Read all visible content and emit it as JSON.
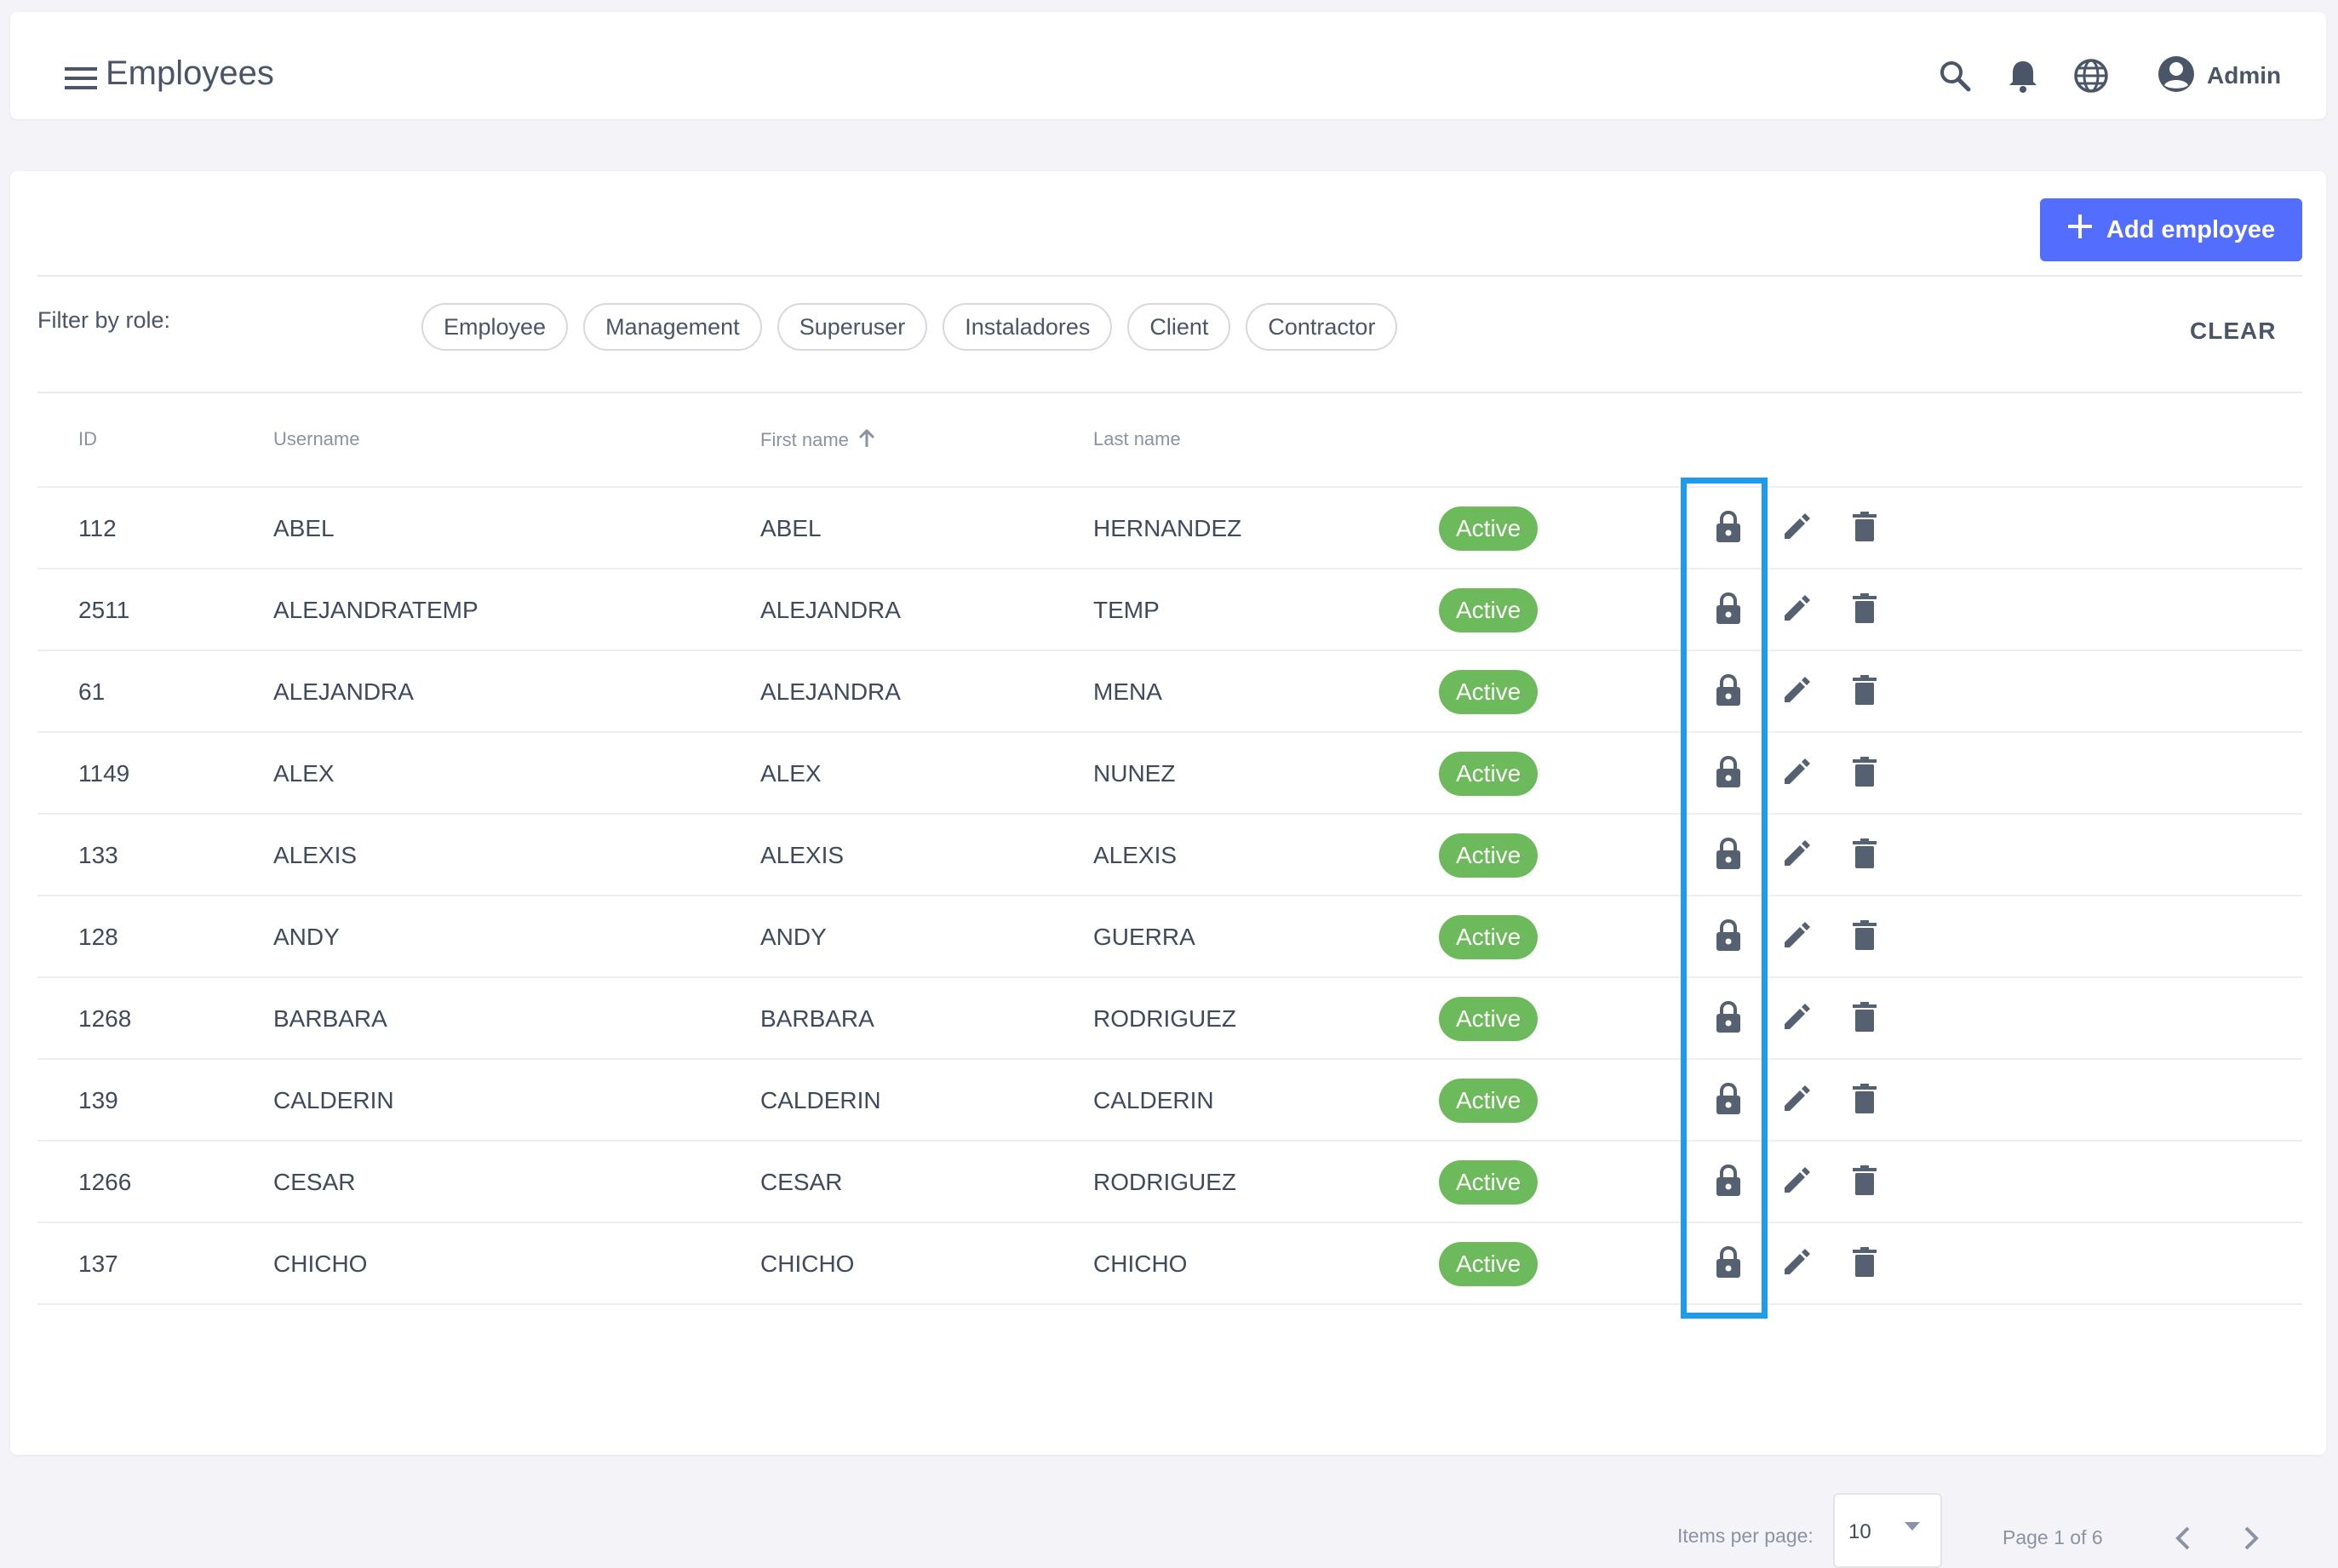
{
  "header": {
    "title": "Employees",
    "user_label": "Admin",
    "icons": [
      "menu-icon",
      "search-icon",
      "bell-icon",
      "globe-icon",
      "account-circle-icon"
    ]
  },
  "toolbar": {
    "add_label": "Add employee"
  },
  "filter": {
    "label": "Filter by role:",
    "roles": [
      "Employee",
      "Management",
      "Superuser",
      "Instaladores",
      "Client",
      "Contractor"
    ],
    "clear_label": "CLEAR"
  },
  "table": {
    "columns": {
      "id": "ID",
      "username": "Username",
      "first_name": "First name",
      "last_name": "Last name"
    },
    "sort": {
      "column": "first_name",
      "direction": "asc"
    },
    "rows": [
      {
        "id": "112",
        "username": "ABEL",
        "first_name": "ABEL",
        "last_name": "HERNANDEZ",
        "status": "Active"
      },
      {
        "id": "2511",
        "username": "ALEJANDRATEMP",
        "first_name": "ALEJANDRA",
        "last_name": "TEMP",
        "status": "Active"
      },
      {
        "id": "61",
        "username": "ALEJANDRA",
        "first_name": "ALEJANDRA",
        "last_name": "MENA",
        "status": "Active"
      },
      {
        "id": "1149",
        "username": "ALEX",
        "first_name": "ALEX",
        "last_name": "NUNEZ",
        "status": "Active"
      },
      {
        "id": "133",
        "username": "ALEXIS",
        "first_name": "ALEXIS",
        "last_name": "ALEXIS",
        "status": "Active"
      },
      {
        "id": "128",
        "username": "ANDY",
        "first_name": "ANDY",
        "last_name": "GUERRA",
        "status": "Active"
      },
      {
        "id": "1268",
        "username": "BARBARA",
        "first_name": "BARBARA",
        "last_name": "RODRIGUEZ",
        "status": "Active"
      },
      {
        "id": "139",
        "username": "CALDERIN",
        "first_name": "CALDERIN",
        "last_name": "CALDERIN",
        "status": "Active"
      },
      {
        "id": "1266",
        "username": "CESAR",
        "first_name": "CESAR",
        "last_name": "RODRIGUEZ",
        "status": "Active"
      },
      {
        "id": "137",
        "username": "CHICHO",
        "first_name": "CHICHO",
        "last_name": "CHICHO",
        "status": "Active"
      }
    ],
    "row_actions": [
      "lock-icon",
      "edit-icon",
      "delete-icon"
    ]
  },
  "pagination": {
    "items_per_page_label": "Items per page:",
    "items_per_page": "10",
    "page_info": "Page 1 of 6"
  },
  "colors": {
    "accent": "#536dfe",
    "status_active": "#6dba5c",
    "highlight": "#1e9be9",
    "icon": "#556070"
  }
}
